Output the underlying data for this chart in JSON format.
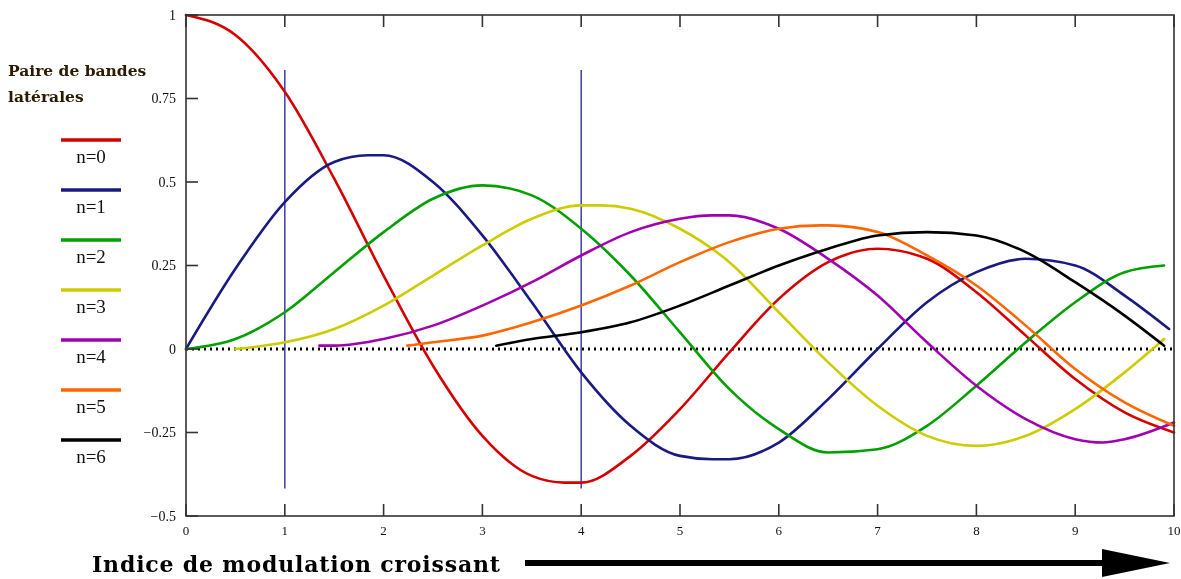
{
  "chart_data": {
    "type": "line",
    "xlabel": "Indice de modulation croissant",
    "legend_title": "Paire de bandes latérales",
    "legend": "left",
    "xlim": [
      0,
      10
    ],
    "xticks": [
      0,
      1,
      2,
      3,
      4,
      5,
      6,
      7,
      8,
      9,
      10
    ],
    "ylim": [
      -0.5,
      1
    ],
    "yticks": [
      {
        "value": -0.5,
        "label": "−0.5"
      },
      {
        "value": -0.25,
        "label": "−0.25"
      },
      0,
      0.25,
      0.5,
      0.75,
      1
    ],
    "ref_lines": [
      {
        "axis": "y",
        "value": 0,
        "color": "#000000",
        "line_style": "dotted"
      },
      {
        "axis": "x",
        "value": 1,
        "color": "#4a4aa8"
      },
      {
        "axis": "x",
        "value": 4,
        "color": "#4a4aa8"
      }
    ],
    "series": [
      {
        "name": "n=0",
        "color": "#d40000",
        "x": [
          0,
          0.5,
          1,
          1.5,
          2,
          2.5,
          3,
          3.5,
          3.83,
          4,
          4.5,
          5,
          5.5,
          6,
          6.5,
          7,
          7.5,
          8,
          8.5,
          9,
          9.5,
          10
        ],
        "values": [
          1,
          0.94,
          0.77,
          0.51,
          0.22,
          -0.05,
          -0.26,
          -0.38,
          -0.4,
          -0.4,
          -0.32,
          -0.18,
          -0.01,
          0.15,
          0.26,
          0.3,
          0.27,
          0.17,
          0.04,
          -0.09,
          -0.19,
          -0.25
        ]
      },
      {
        "name": "n=1",
        "color": "#1a1a80",
        "x": [
          0,
          0.5,
          1,
          1.5,
          1.84,
          2,
          2.5,
          3,
          3.5,
          4,
          4.5,
          5,
          5.33,
          5.5,
          6,
          6.5,
          7,
          7.5,
          8,
          8.5,
          9,
          9.5,
          9.95
        ],
        "values": [
          0,
          0.24,
          0.44,
          0.56,
          0.58,
          0.58,
          0.5,
          0.34,
          0.14,
          -0.07,
          -0.23,
          -0.32,
          -0.33,
          -0.33,
          -0.28,
          -0.15,
          0,
          0.14,
          0.23,
          0.27,
          0.25,
          0.16,
          0.06
        ]
      },
      {
        "name": "n=2",
        "color": "#00a000",
        "x": [
          0,
          0.5,
          1,
          1.5,
          2,
          2.5,
          3,
          3.5,
          4,
          4.5,
          5,
          5.5,
          6,
          6.5,
          7,
          7.5,
          8,
          8.5,
          9,
          9.5,
          9.9
        ],
        "values": [
          0,
          0.03,
          0.11,
          0.23,
          0.35,
          0.45,
          0.49,
          0.46,
          0.36,
          0.22,
          0.05,
          -0.12,
          -0.24,
          -0.31,
          -0.3,
          -0.23,
          -0.11,
          0.02,
          0.14,
          0.23,
          0.25
        ]
      },
      {
        "name": "n=3",
        "color": "#cccc00",
        "x": [
          0.5,
          1,
          1.5,
          2,
          2.5,
          3,
          3.5,
          4,
          4.2,
          4.5,
          5,
          5.5,
          6,
          6.5,
          7,
          7.5,
          8,
          8.5,
          9,
          9.5,
          9.9
        ],
        "values": [
          0,
          0.02,
          0.06,
          0.13,
          0.22,
          0.31,
          0.39,
          0.43,
          0.43,
          0.42,
          0.36,
          0.26,
          0.11,
          -0.04,
          -0.17,
          -0.26,
          -0.29,
          -0.26,
          -0.18,
          -0.07,
          0.03
        ]
      },
      {
        "name": "n=4",
        "color": "#a000b0",
        "x": [
          1.35,
          1.5,
          2,
          2.5,
          3,
          3.5,
          4,
          4.5,
          5,
          5.32,
          5.5,
          6,
          6.5,
          7,
          7.5,
          8,
          8.5,
          9,
          9.28,
          9.5,
          10
        ],
        "values": [
          0.01,
          0.01,
          0.03,
          0.07,
          0.13,
          0.2,
          0.28,
          0.35,
          0.39,
          0.4,
          0.4,
          0.36,
          0.27,
          0.16,
          0.02,
          -0.11,
          -0.21,
          -0.27,
          -0.28,
          -0.27,
          -0.22
        ]
      },
      {
        "name": "n=5",
        "color": "#ff6600",
        "x": [
          2.24,
          2.5,
          3,
          3.5,
          4,
          4.5,
          5,
          5.5,
          6,
          6.42,
          6.5,
          7,
          7.5,
          8,
          8.5,
          9,
          9.5,
          10
        ],
        "values": [
          0.01,
          0.02,
          0.04,
          0.08,
          0.13,
          0.19,
          0.26,
          0.32,
          0.36,
          0.37,
          0.37,
          0.35,
          0.28,
          0.19,
          0.07,
          -0.06,
          -0.16,
          -0.23
        ]
      },
      {
        "name": "n=6",
        "color": "#000000",
        "x": [
          3.14,
          3.5,
          4,
          4.5,
          5,
          5.5,
          6,
          6.5,
          7,
          7.5,
          8,
          8.5,
          9,
          9.5,
          9.9
        ],
        "values": [
          0.01,
          0.03,
          0.05,
          0.08,
          0.13,
          0.19,
          0.25,
          0.3,
          0.34,
          0.35,
          0.34,
          0.29,
          0.2,
          0.1,
          0.01
        ]
      }
    ]
  }
}
